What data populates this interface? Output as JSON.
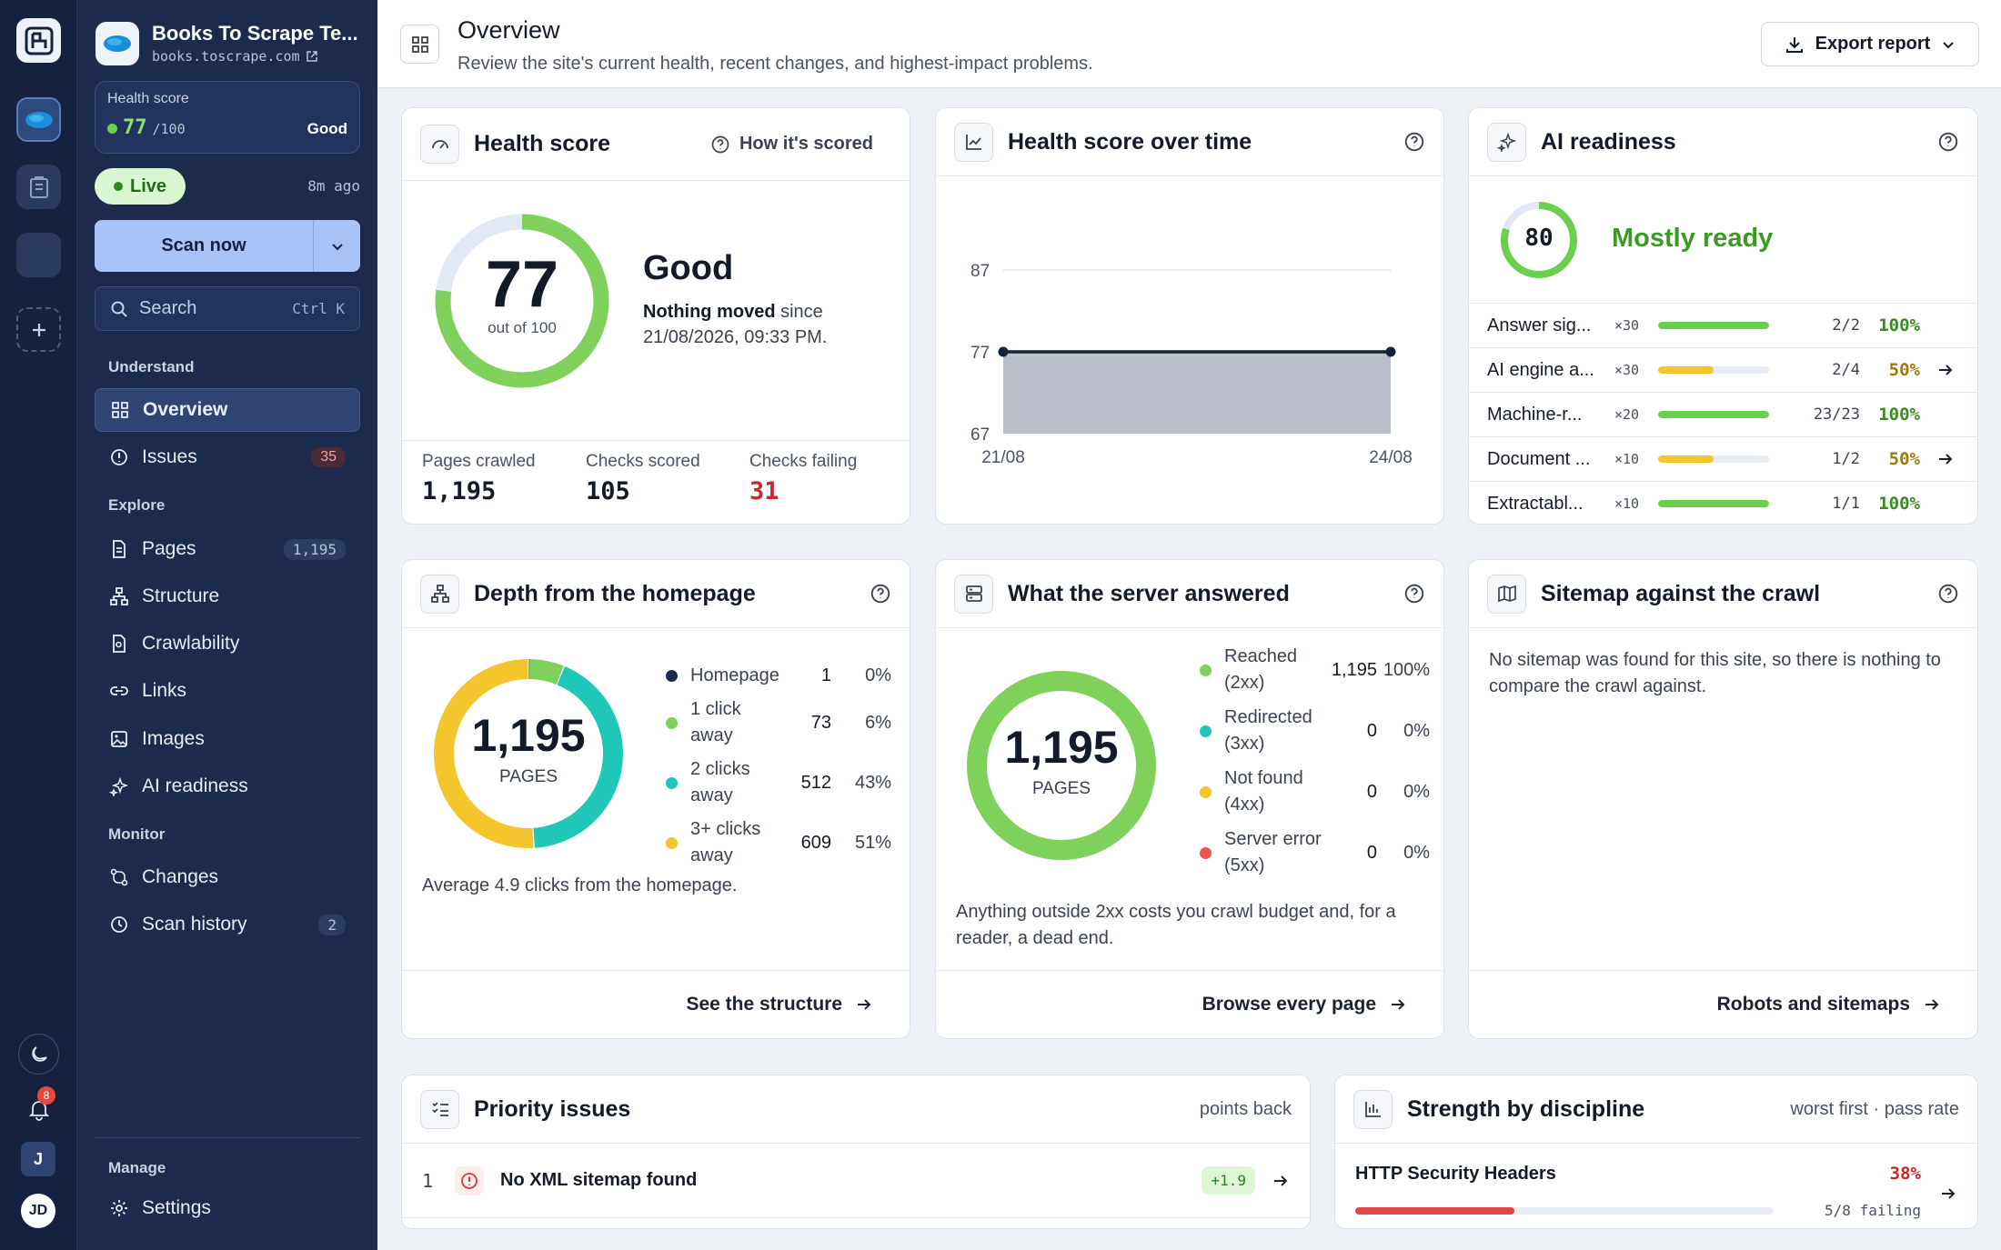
{
  "rail": {
    "badge_count": "8",
    "user_initial": "J",
    "avatar_initials": "JD"
  },
  "site": {
    "title": "Books To Scrape Te...",
    "url": "books.toscrape.com"
  },
  "health_card": {
    "label": "Health score",
    "score": "77",
    "max": "/100",
    "status": "Good"
  },
  "live": {
    "label": "Live",
    "ago": "8m ago"
  },
  "scan": {
    "label": "Scan now"
  },
  "search": {
    "placeholder": "Search",
    "shortcut": "Ctrl K"
  },
  "sections": {
    "understand": "Understand",
    "explore": "Explore",
    "monitor": "Monitor",
    "manage": "Manage"
  },
  "nav": {
    "overview": "Overview",
    "issues": "Issues",
    "issues_count": "35",
    "pages": "Pages",
    "pages_count": "1,195",
    "structure": "Structure",
    "crawlability": "Crawlability",
    "links": "Links",
    "images": "Images",
    "ai_readiness": "AI readiness",
    "changes": "Changes",
    "scan_history": "Scan history",
    "scan_history_count": "2",
    "settings": "Settings"
  },
  "header": {
    "title": "Overview",
    "subtitle": "Review the site's current health, recent changes, and highest-impact problems.",
    "export": "Export report"
  },
  "health_score": {
    "title": "Health score",
    "how": "How it's scored",
    "value": "77",
    "value_num": 77,
    "out_of": "out of 100",
    "status": "Good",
    "moved_bold": "Nothing moved",
    "moved_rest": " since",
    "moved_date": "21/08/2026, 09:33 PM.",
    "stats": [
      {
        "label": "Pages crawled",
        "value": "1,195"
      },
      {
        "label": "Checks scored",
        "value": "105"
      },
      {
        "label": "Checks failing",
        "value": "31"
      }
    ]
  },
  "health_over_time": {
    "title": "Health score over time"
  },
  "chart_data": {
    "type": "area",
    "x": [
      "21/08",
      "24/08"
    ],
    "values": [
      77,
      77
    ],
    "yticks": [
      87,
      77,
      67
    ],
    "ylim": [
      67,
      87
    ],
    "title": "Health score over time",
    "xlabel": "",
    "ylabel": ""
  },
  "ai": {
    "title": "AI readiness",
    "score": "80",
    "score_num": 80,
    "status": "Mostly ready",
    "rows": [
      {
        "name": "Answer sig...",
        "weight": "×30",
        "ratio": "2/2",
        "pct": "100%",
        "fill": 1.0,
        "color": "#6bcf4e",
        "tone": "#3a8a23"
      },
      {
        "name": "AI engine a...",
        "weight": "×30",
        "ratio": "2/4",
        "pct": "50%",
        "fill": 0.5,
        "color": "#f2c62c",
        "tone": "#9a7a08"
      },
      {
        "name": "Machine-r...",
        "weight": "×20",
        "ratio": "23/23",
        "pct": "100%",
        "fill": 1.0,
        "color": "#6bcf4e",
        "tone": "#3a8a23"
      },
      {
        "name": "Document ...",
        "weight": "×10",
        "ratio": "1/2",
        "pct": "50%",
        "fill": 0.5,
        "color": "#f2c62c",
        "tone": "#9a7a08"
      },
      {
        "name": "Extractabl...",
        "weight": "×10",
        "ratio": "1/1",
        "pct": "100%",
        "fill": 1.0,
        "color": "#6bcf4e",
        "tone": "#3a8a23"
      }
    ]
  },
  "depth": {
    "title": "Depth from the homepage",
    "total": "1,195",
    "unit": "PAGES",
    "rows": [
      {
        "l1": "Homepage",
        "l2": "",
        "count": "1",
        "pct": "0%",
        "color": "#1b2a4d",
        "value": 1
      },
      {
        "l1": "1 click",
        "l2": "away",
        "count": "73",
        "pct": "6%",
        "color": "#7fd15c",
        "value": 73
      },
      {
        "l1": "2 clicks",
        "l2": "away",
        "count": "512",
        "pct": "43%",
        "color": "#1fc7b8",
        "value": 512
      },
      {
        "l1": "3+ clicks",
        "l2": "away",
        "count": "609",
        "pct": "51%",
        "color": "#f2c62c",
        "value": 609
      }
    ],
    "avg": "Average 4.9 clicks from the homepage.",
    "link": "See the structure"
  },
  "server": {
    "title": "What the server answered",
    "total": "1,195",
    "unit": "PAGES",
    "rows": [
      {
        "l1": "Reached",
        "l2": "(2xx)",
        "count": "1,195",
        "pct": "100%",
        "color": "#7fd15c",
        "value": 1195
      },
      {
        "l1": "Redirected",
        "l2": "(3xx)",
        "count": "0",
        "pct": "0%",
        "color": "#1fc7b8",
        "value": 0
      },
      {
        "l1": "Not found",
        "l2": "(4xx)",
        "count": "0",
        "pct": "0%",
        "color": "#f2c62c",
        "value": 0
      },
      {
        "l1": "Server error",
        "l2": "(5xx)",
        "count": "0",
        "pct": "0%",
        "color": "#ef5350",
        "value": 0
      }
    ],
    "note": "Anything outside 2xx costs you crawl budget and, for a reader, a dead end.",
    "link": "Browse every page"
  },
  "sitemap": {
    "title": "Sitemap against the crawl",
    "text": "No sitemap was found for this site, so there is nothing to compare the crawl against.",
    "link": "Robots and sitemaps"
  },
  "priority": {
    "title": "Priority issues",
    "right": "points back",
    "item_num": "1",
    "item_title": "No XML sitemap found",
    "item_points": "+1.9"
  },
  "strength": {
    "title": "Strength by discipline",
    "right": "worst first · pass rate",
    "item": "HTTP Security Headers",
    "pct": "38%",
    "failing": "5/8 failing",
    "fill": 0.38
  }
}
